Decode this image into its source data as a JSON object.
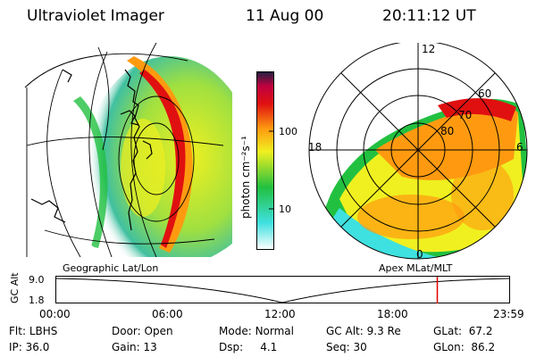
{
  "header": {
    "instrument": "Ultraviolet Imager",
    "date": "11 Aug 00",
    "time": "20:11:12 UT"
  },
  "colorbar": {
    "unit_label": "photon cm⁻²s⁻¹",
    "ticks": [
      "100",
      "10"
    ]
  },
  "polar_plot": {
    "mlt_labels": [
      "12",
      "18",
      "6",
      "0"
    ],
    "lat_labels": [
      "60",
      "70",
      "80"
    ]
  },
  "timeline": {
    "left_label": "Geographic Lat/Lon",
    "right_label": "Apex MLat/MLT",
    "axis_title": "GC Alt",
    "y_ticks": [
      "9.0",
      "1.8"
    ],
    "x_ticks": [
      "00:00",
      "06:00",
      "12:00",
      "18:00",
      "23:59"
    ],
    "marker_hours": 20.19,
    "marker_color": "#e00000"
  },
  "info": {
    "row1": [
      {
        "label": "Flt:",
        "value": "LBHS"
      },
      {
        "label": "Door:",
        "value": "Open"
      },
      {
        "label": "Mode:",
        "value": "Normal"
      },
      {
        "label": "GC Alt:",
        "value": "9.3 Re"
      },
      {
        "label": "GLat:",
        "value": "67.2"
      }
    ],
    "row2": [
      {
        "label": "IP:",
        "value": "36.0"
      },
      {
        "label": "Gain:",
        "value": "13"
      },
      {
        "label": "Dsp:",
        "value": "4.1"
      },
      {
        "label": "Seq:",
        "value": "30"
      },
      {
        "label": "GLon:",
        "value": "86.2"
      }
    ]
  },
  "colors": {
    "low": "#ffffff",
    "cyan": "#3fe0e0",
    "green": "#22c040",
    "yellow": "#f0f020",
    "orange": "#ff9a10",
    "red": "#e01010",
    "dark": "#202040"
  }
}
